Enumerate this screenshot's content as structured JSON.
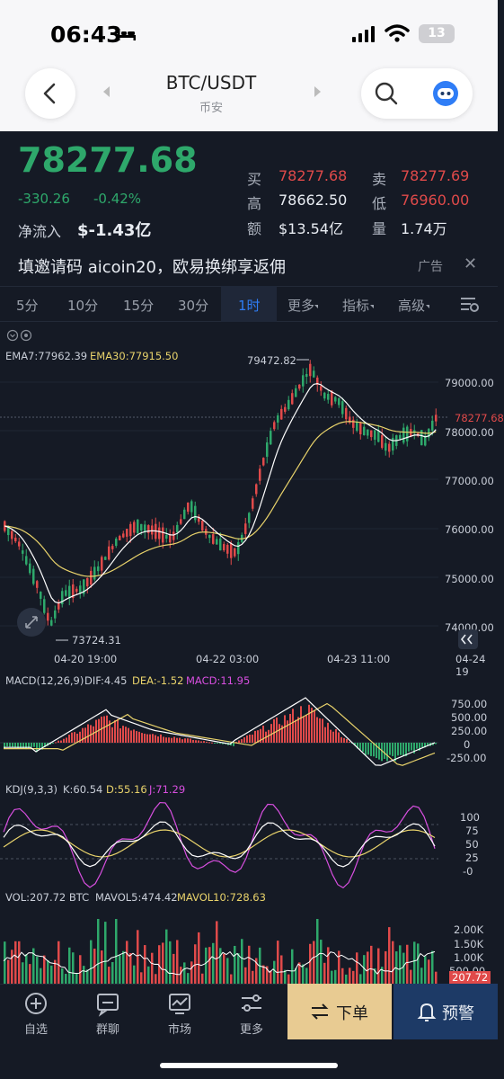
{
  "status": {
    "time": "06:43",
    "battery": "13"
  },
  "nav": {
    "title": "BTC/USDT",
    "exchange": "币安"
  },
  "quote": {
    "price": "78277.68",
    "change": "-330.26",
    "change_pct": "-0.42%",
    "inflow_label": "净流入",
    "inflow_value": "$-1.43亿",
    "buy_label": "买",
    "buy": "78277.68",
    "sell_label": "卖",
    "sell": "78277.69",
    "high_label": "高",
    "high": "78662.50",
    "low_label": "低",
    "low": "76960.00",
    "amount_label": "额",
    "amount": "$13.54亿",
    "volume_label": "量",
    "volume": "1.74万"
  },
  "ad": {
    "text": "填邀请码 aicoin20，欧易换绑享返佣",
    "tag": "广告",
    "close": "✕"
  },
  "tabs": [
    {
      "label": "5分"
    },
    {
      "label": "10分"
    },
    {
      "label": "15分"
    },
    {
      "label": "30分"
    },
    {
      "label": "1时"
    },
    {
      "label": "更多"
    },
    {
      "label": "指标"
    },
    {
      "label": "高级"
    }
  ],
  "chart": {
    "ema_label": "EMA7:77962.39",
    "ema30_label": "EMA30:77915.50",
    "high_mark": "79472.82",
    "low_mark": "73724.31",
    "current_price_tag": "78277.68",
    "price_axis": [
      "79000.00",
      "78000.00",
      "77000.00",
      "76000.00",
      "75000.00",
      "74000.00"
    ],
    "time_axis": [
      "04-20 19:00",
      "04-22 03:00",
      "04-23 11:00",
      "04-24 19"
    ],
    "macd_label": "MACD(12,26,9)",
    "dif": "DIF:4.45",
    "dea": "DEA:-1.52",
    "macd": "MACD:11.95",
    "macd_axis": [
      "750.00",
      "500.00",
      "250.00",
      "0",
      "-250.00"
    ],
    "kdj_label": "KDJ(9,3,3)",
    "kdj_k": "K:60.54",
    "kdj_d": "D:55.16",
    "kdj_j": "J:71.29",
    "kdj_axis": [
      "100",
      "75",
      "50",
      "25",
      "-0"
    ],
    "vol_label": "VOL:207.72 BTC",
    "mavol5": "MAVOL5:474.42",
    "mavol10": "MAVOL10:728.63",
    "vol_axis": [
      "2.00K",
      "1.50K",
      "1.00K",
      "500.00"
    ],
    "vol_tag": "207.72",
    "colors": {
      "up": "#e04a4a",
      "down": "#2ea86b",
      "ema7": "#ffffff",
      "ema30": "#e9d36b",
      "macd": "#d84fe0"
    }
  },
  "bottom_nav": {
    "items": [
      {
        "label": "自选",
        "icon": "plus-circle-icon"
      },
      {
        "label": "群聊",
        "icon": "chat-icon"
      },
      {
        "label": "市场",
        "icon": "market-chart-icon"
      },
      {
        "label": "更多",
        "icon": "sliders-icon"
      }
    ],
    "order": "下单",
    "alert": "预警"
  }
}
